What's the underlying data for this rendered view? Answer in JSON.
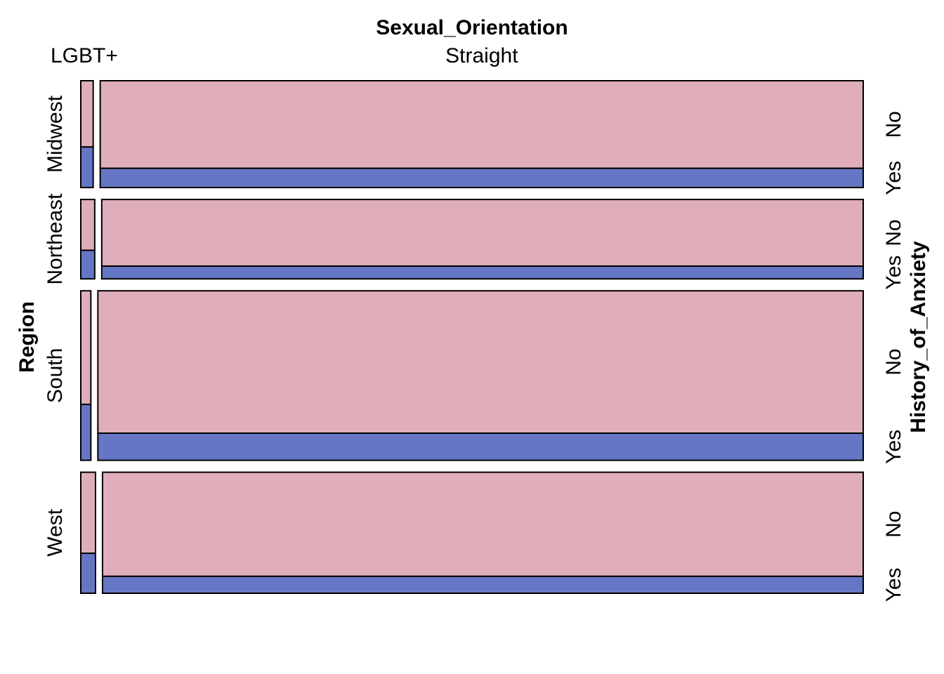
{
  "chart_data": {
    "type": "mosaic",
    "x_variable": "Sexual_Orientation",
    "y_variable": "Region",
    "fill_variable": "History_of_Anxiety",
    "x_categories": [
      "LGBT+",
      "Straight"
    ],
    "y_categories": [
      "Midwest",
      "Northeast",
      "South",
      "West"
    ],
    "fill_categories": [
      "No",
      "Yes"
    ],
    "colors": {
      "No": "#e0aeba",
      "Yes": "#6577c4"
    },
    "region_share": {
      "Midwest": 0.218,
      "Northeast": 0.162,
      "South": 0.346,
      "West": 0.247
    },
    "lgbt_share": {
      "Midwest": 0.016,
      "Northeast": 0.018,
      "South": 0.013,
      "West": 0.019
    },
    "anxiety_yes_share": {
      "Midwest": {
        "LGBT+": 0.38,
        "Straight": 0.18
      },
      "Northeast": {
        "LGBT+": 0.36,
        "Straight": 0.16
      },
      "South": {
        "LGBT+": 0.33,
        "Straight": 0.16
      },
      "West": {
        "LGBT+": 0.33,
        "Straight": 0.14
      }
    }
  }
}
